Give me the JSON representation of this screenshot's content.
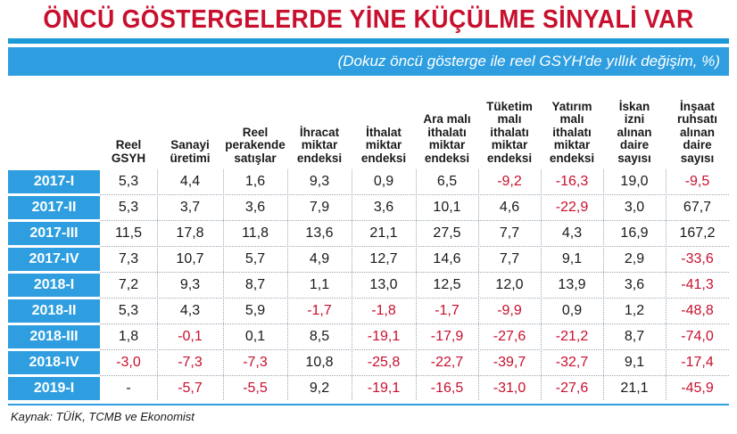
{
  "title": "ÖNCÜ GÖSTERGELERDE YİNE KÜÇÜLME SİNYALİ VAR",
  "subtitle": "(Dokuz öncü gösterge ile reel GSYH'de yıllık değişim, %)",
  "source": "Kaynak: TÜİK, TCMB ve Ekonomist",
  "colors": {
    "accent": "#2e9ee0",
    "title": "#c8102e",
    "negative": "#c8102e"
  },
  "chart_data": {
    "type": "table",
    "title": "ÖNCÜ GÖSTERGELERDE YİNE KÜÇÜLME SİNYALİ VAR",
    "subtitle": "(Dokuz öncü gösterge ile reel GSYH'de yıllık değişim, %)",
    "columns": [
      "Reel\nGSYH",
      "Sanayi\nüretimi",
      "Reel\nperakende\nsatışlar",
      "İhracat\nmiktar\nendeksi",
      "İthalat\nmiktar\nendeksi",
      "Ara malı\nithalatı\nmiktar\nendeksi",
      "Tüketim\nmalı\nithalatı\nmiktar\nendeksi",
      "Yatırım\nmalı\nithalatı\nmiktar\nendeksi",
      "İskan\nizni\nalınan\ndaire\nsayısı",
      "İnşaat\nruhsatı\nalınan\ndaire\nsayısı"
    ],
    "rows": [
      {
        "label": "2017-I",
        "values": [
          "5,3",
          "4,4",
          "1,6",
          "9,3",
          "0,9",
          "6,5",
          "-9,2",
          "-16,3",
          "19,0",
          "-9,5"
        ]
      },
      {
        "label": "2017-II",
        "values": [
          "5,3",
          "3,7",
          "3,6",
          "7,9",
          "3,6",
          "10,1",
          "4,6",
          "-22,9",
          "3,0",
          "67,7"
        ]
      },
      {
        "label": "2017-III",
        "values": [
          "11,5",
          "17,8",
          "11,8",
          "13,6",
          "21,1",
          "27,5",
          "7,7",
          "4,3",
          "16,9",
          "167,2"
        ]
      },
      {
        "label": "2017-IV",
        "values": [
          "7,3",
          "10,7",
          "5,7",
          "4,9",
          "12,7",
          "14,6",
          "7,7",
          "9,1",
          "2,9",
          "-33,6"
        ]
      },
      {
        "label": "2018-I",
        "values": [
          "7,2",
          "9,3",
          "8,7",
          "1,1",
          "13,0",
          "12,5",
          "12,0",
          "13,9",
          "3,6",
          "-41,3"
        ]
      },
      {
        "label": "2018-II",
        "values": [
          "5,3",
          "4,3",
          "5,9",
          "-1,7",
          "-1,8",
          "-1,7",
          "-9,9",
          "0,9",
          "1,2",
          "-48,8"
        ]
      },
      {
        "label": "2018-III",
        "values": [
          "1,8",
          "-0,1",
          "0,1",
          "8,5",
          "-19,1",
          "-17,9",
          "-27,6",
          "-21,2",
          "8,7",
          "-74,0"
        ]
      },
      {
        "label": "2018-IV",
        "values": [
          "-3,0",
          "-7,3",
          "-7,3",
          "10,8",
          "-25,8",
          "-22,7",
          "-39,7",
          "-32,7",
          "9,1",
          "-17,4"
        ]
      },
      {
        "label": "2019-I",
        "values": [
          "-",
          "-5,7",
          "-5,5",
          "9,2",
          "-19,1",
          "-16,5",
          "-31,0",
          "-27,6",
          "21,1",
          "-45,9"
        ]
      }
    ]
  }
}
